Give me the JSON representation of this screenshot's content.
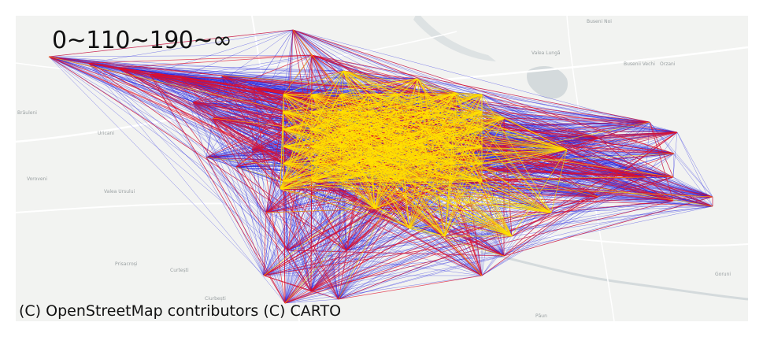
{
  "map": {
    "legend_label": "0~110~190~∞",
    "attribution": "(C) OpenStreetMap contributors (C) CARTO",
    "place_labels": {
      "busenii_noi": "Buseni Noi",
      "valea_lunga": "Valea Lungă",
      "busenii_vechi": "Busenii Vechi",
      "orzani": "Orzani",
      "brauleni": "Brăuleni",
      "uricani": "Uricani",
      "voroveni": "Voroveni",
      "valea_ursului": "Valea Ursului",
      "prisacrosi": "Prisacroși",
      "curtesti": "Curtești",
      "ciurbesti": "Ciurbești",
      "paun": "Păun",
      "goruni": "Goruni"
    }
  },
  "flow_classes": [
    {
      "range": "0~110",
      "color": "#1f1fe0"
    },
    {
      "range": "110~190",
      "color": "#e0102a"
    },
    {
      "range": "190~∞",
      "color": "#ffe000"
    }
  ],
  "colors": {
    "land": "#f2f3f1",
    "water": "#d4dadc",
    "road": "#ffffff"
  }
}
